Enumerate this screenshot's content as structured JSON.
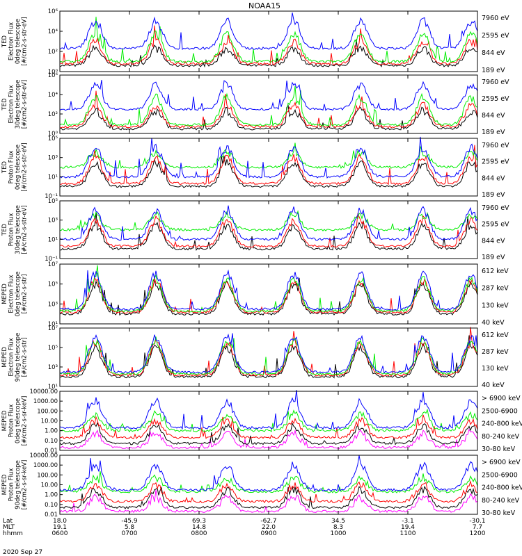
{
  "title": "NOAA15",
  "date_label": "2020 Sep 27",
  "footer": {
    "row_labels": [
      "Lat",
      "MLT",
      "hhmm"
    ],
    "columns": [
      {
        "lat": "18.0",
        "mlt": "19.1",
        "hhmm": "0600"
      },
      {
        "lat": "-45.9",
        "mlt": "5.8",
        "hhmm": "0700"
      },
      {
        "lat": "69.3",
        "mlt": "14.8",
        "hhmm": "0800"
      },
      {
        "lat": "-62.7",
        "mlt": "22.0",
        "hhmm": "0900"
      },
      {
        "lat": "34.5",
        "mlt": "8.3",
        "hhmm": "1000"
      },
      {
        "lat": "-3.1",
        "mlt": "19.4",
        "hhmm": "1100"
      },
      {
        "lat": "-30.1",
        "mlt": "7.7",
        "hhmm": "1200"
      }
    ]
  },
  "colors": {
    "blue": "#0000ff",
    "red": "#ff0000",
    "green": "#00ee00",
    "black": "#000000",
    "magenta": "#ff00ff"
  },
  "chart_data": [
    {
      "type": "line",
      "ylabel": [
        "TED",
        "Electron Flux",
        "0deg telescope",
        "[#/cm2-s-str-eV]"
      ],
      "yscale": "log",
      "ylim": [
        1,
        1000000
      ],
      "ytick_labels": [
        "10⁰",
        "10²",
        "10⁴",
        "10⁶"
      ],
      "x_range": [
        "0600",
        "1200"
      ],
      "series": [
        {
          "name": "7960 eV",
          "color": "#000000",
          "base": 4,
          "peak": 200
        },
        {
          "name": "2595 eV",
          "color": "#ff0000",
          "base": 6,
          "peak": 1000
        },
        {
          "name": "844 eV",
          "color": "#00ee00",
          "base": 10,
          "peak": 5000
        },
        {
          "name": "189 eV",
          "color": "#0000ff",
          "base": 200,
          "peak": 100000
        }
      ]
    },
    {
      "type": "line",
      "ylabel": [
        "TED",
        "Electron Flux",
        "30deg telescope",
        "[#/cm2-s-str-eV]"
      ],
      "yscale": "log",
      "ylim": [
        1,
        1000000
      ],
      "ytick_labels": [
        "10⁰",
        "10²",
        "10⁴",
        "10⁶"
      ],
      "x_range": [
        "0600",
        "1200"
      ],
      "series": [
        {
          "name": "7960 eV",
          "color": "#000000",
          "base": 3,
          "peak": 200
        },
        {
          "name": "2595 eV",
          "color": "#ff0000",
          "base": 5,
          "peak": 800
        },
        {
          "name": "844 eV",
          "color": "#00ee00",
          "base": 8,
          "peak": 5000
        },
        {
          "name": "189 eV",
          "color": "#0000ff",
          "base": 300,
          "peak": 100000
        }
      ]
    },
    {
      "type": "line",
      "ylabel": [
        "TED",
        "Proton Flux",
        "0deg telescope",
        "[#/cm2-s-str-eV]"
      ],
      "yscale": "log",
      "ylim": [
        0.1,
        100000
      ],
      "ytick_labels": [
        "10⁻¹",
        "10¹",
        "10³",
        "10⁵"
      ],
      "x_range": [
        "0600",
        "1200"
      ],
      "series": [
        {
          "name": "7960 eV",
          "color": "#000000",
          "base": 1,
          "peak": 300
        },
        {
          "name": "2595 eV",
          "color": "#ff0000",
          "base": 2,
          "peak": 1000
        },
        {
          "name": "844 eV",
          "color": "#00ee00",
          "base": 100,
          "peak": 3000
        },
        {
          "name": "189 eV",
          "color": "#0000ff",
          "base": 10,
          "peak": 10000
        }
      ]
    },
    {
      "type": "line",
      "ylabel": [
        "TED",
        "Proton Flux",
        "30deg telescope",
        "[#/cm2-s-str-eV]"
      ],
      "yscale": "log",
      "ylim": [
        0.1,
        100000
      ],
      "ytick_labels": [
        "10⁻¹",
        "10¹",
        "10³",
        "10⁵"
      ],
      "x_range": [
        "0600",
        "1200"
      ],
      "series": [
        {
          "name": "7960 eV",
          "color": "#000000",
          "base": 1,
          "peak": 300
        },
        {
          "name": "2595 eV",
          "color": "#ff0000",
          "base": 2,
          "peak": 1000
        },
        {
          "name": "844 eV",
          "color": "#00ee00",
          "base": 100,
          "peak": 3000
        },
        {
          "name": "189 eV",
          "color": "#0000ff",
          "base": 10,
          "peak": 10000
        }
      ]
    },
    {
      "type": "line",
      "ylabel": [
        "MEPED",
        "Electron Flux",
        "0deg telescope",
        "[#/cm2-s-str]"
      ],
      "yscale": "log",
      "ylim": [
        10,
        10000000
      ],
      "ytick_labels": [
        "10¹",
        "10³",
        "10⁵",
        "10⁷"
      ],
      "x_range": [
        "0600",
        "1200"
      ],
      "series": [
        {
          "name": "612 keV",
          "color": "#000000",
          "base": 100,
          "peak": 100000
        },
        {
          "name": "287 keV",
          "color": "#ff0000",
          "base": 150,
          "peak": 200000
        },
        {
          "name": "130 keV",
          "color": "#00ee00",
          "base": 200,
          "peak": 300000
        },
        {
          "name": "40 keV",
          "color": "#0000ff",
          "base": 300,
          "peak": 1000000
        }
      ]
    },
    {
      "type": "line",
      "ylabel": [
        "MEPED",
        "Electron Flux",
        "90deg telescope",
        "[#/cm2-s-str]"
      ],
      "yscale": "log",
      "ylim": [
        10,
        10000000
      ],
      "ytick_labels": [
        "10¹",
        "10³",
        "10⁵",
        "10⁷"
      ],
      "x_range": [
        "0600",
        "1200"
      ],
      "series": [
        {
          "name": "612 keV",
          "color": "#000000",
          "base": 100,
          "peak": 100000
        },
        {
          "name": "287 keV",
          "color": "#ff0000",
          "base": 150,
          "peak": 300000
        },
        {
          "name": "130 keV",
          "color": "#00ee00",
          "base": 200,
          "peak": 500000
        },
        {
          "name": "40 keV",
          "color": "#0000ff",
          "base": 300,
          "peak": 1000000
        }
      ]
    },
    {
      "type": "line",
      "ylabel": [
        "MEPED",
        "Proton Flux",
        "0deg telescope",
        "[#/cm2-s-sr-keV]"
      ],
      "yscale": "log",
      "ylim": [
        0.01,
        10000
      ],
      "ytick_labels": [
        "10000.00",
        "1000.00",
        "100.00",
        "10.00",
        "1.00",
        "0.10",
        "0.01"
      ],
      "x_range": [
        "0600",
        "1200"
      ],
      "series": [
        {
          "name": "> 6900 keV",
          "color": "#ff00ff",
          "base": 0.02,
          "peak": 0.5
        },
        {
          "name": "2500-6900",
          "color": "#000000",
          "base": 0.05,
          "peak": 3
        },
        {
          "name": "240-800 keV",
          "color": "#ff0000",
          "base": 0.2,
          "peak": 10
        },
        {
          "name": "80-240 keV",
          "color": "#00ee00",
          "base": 1,
          "peak": 50
        },
        {
          "name": "30-80 keV",
          "color": "#0000ff",
          "base": 2,
          "peak": 1000
        }
      ]
    },
    {
      "type": "line",
      "ylabel": [
        "MEPED",
        "Proton Flux",
        "90deg telescope",
        "[#/cm2-s-sr-keV]"
      ],
      "yscale": "log",
      "ylim": [
        0.01,
        10000
      ],
      "ytick_labels": [
        "10000.00",
        "1000.00",
        "100.00",
        "10.00",
        "1.00",
        "0.10",
        "0.01"
      ],
      "x_range": [
        "0600",
        "1200"
      ],
      "series": [
        {
          "name": "> 6900 keV",
          "color": "#ff00ff",
          "base": 0.02,
          "peak": 0.5
        },
        {
          "name": "2500-6900",
          "color": "#000000",
          "base": 0.05,
          "peak": 3
        },
        {
          "name": "240-800 keV",
          "color": "#ff0000",
          "base": 0.2,
          "peak": 10
        },
        {
          "name": "80-240 keV",
          "color": "#00ee00",
          "base": 2,
          "peak": 50
        },
        {
          "name": "30-80 keV",
          "color": "#0000ff",
          "base": 3,
          "peak": 1000
        }
      ]
    }
  ]
}
